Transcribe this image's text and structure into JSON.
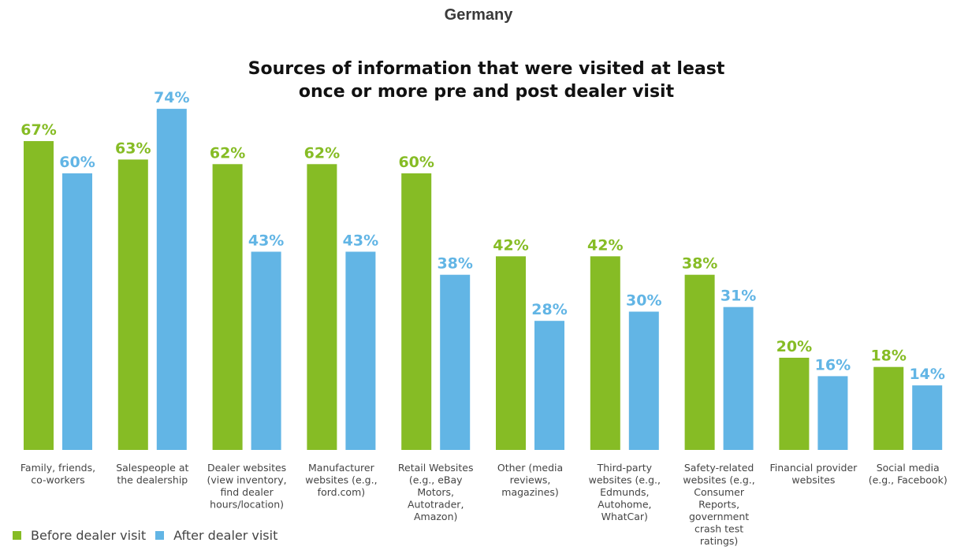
{
  "page_title": "Germany",
  "colors": {
    "before": "#86bc25",
    "after": "#62b5e5"
  },
  "chart_data": {
    "type": "bar",
    "title": "Sources of information that were visited at least once or more pre and post dealer visit",
    "title_lines": [
      "Sources of information that were visited at least",
      "once or more pre and post dealer visit"
    ],
    "categories": [
      "Family, friends, co-workers",
      "Salespeople at the dealership",
      "Dealer websites (view inventory, find dealer hours/location)",
      "Manufacturer websites (e.g., ford.com)",
      "Retail Websites (e.g., eBay Motors, Autotrader, Amazon)",
      "Other (media reviews, magazines)",
      "Third-party websites (e.g., Edmunds, Autohome, WhatCar)",
      "Safety-related websites (e.g., Consumer Reports, government crash test ratings)",
      "Financial provider websites",
      "Social media (e.g., Facebook)"
    ],
    "category_lines": [
      [
        "Family, friends,",
        "co-workers"
      ],
      [
        "Salespeople at",
        "the dealership"
      ],
      [
        "Dealer websites",
        "(view inventory,",
        "find dealer",
        "hours/location)"
      ],
      [
        "Manufacturer",
        "websites (e.g.,",
        "ford.com)"
      ],
      [
        "Retail Websites",
        "(e.g., eBay",
        "Motors,",
        "Autotrader,",
        "Amazon)"
      ],
      [
        "Other (media",
        "reviews,",
        "magazines)"
      ],
      [
        "Third-party",
        "websites (e.g.,",
        "Edmunds,",
        "Autohome,",
        "WhatCar)"
      ],
      [
        "Safety-related",
        "websites (e.g.,",
        "Consumer",
        "Reports,",
        "government",
        "crash test",
        "ratings)"
      ],
      [
        "Financial provider",
        "websites"
      ],
      [
        "Social media",
        "(e.g., Facebook)"
      ]
    ],
    "series": [
      {
        "name": "Before dealer visit",
        "values": [
          67,
          63,
          62,
          62,
          60,
          42,
          42,
          38,
          20,
          18
        ],
        "labels": [
          "67%",
          "63%",
          "62%",
          "62%",
          "60%",
          "42%",
          "42%",
          "38%",
          "20%",
          "18%"
        ]
      },
      {
        "name": "After dealer visit",
        "values": [
          60,
          74,
          43,
          43,
          38,
          28,
          30,
          31,
          16,
          14
        ],
        "labels": [
          "60%",
          "74%",
          "43%",
          "43%",
          "38%",
          "28%",
          "30%",
          "31%",
          "16%",
          "14%"
        ]
      }
    ],
    "ylim": [
      0,
      74
    ],
    "xlabel": "",
    "ylabel": "",
    "grid": false,
    "legend_position": "bottom-left"
  }
}
